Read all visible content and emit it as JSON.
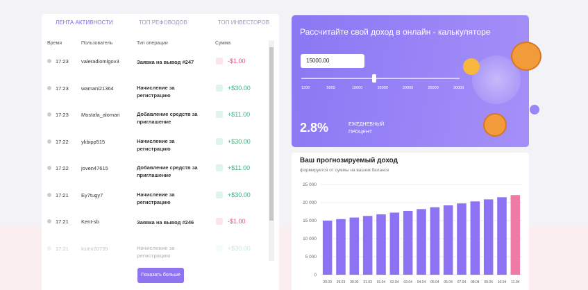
{
  "tabs": [
    "ЛЕНТА АКТИВНОСТИ",
    "ТОП РЕФОВОДОВ",
    "ТОП ИНВЕСТОРОВ"
  ],
  "table": {
    "columns": [
      "Время",
      "Пользователь",
      "Тип операции",
      "Сумма"
    ],
    "rows": [
      [
        "17:23",
        "valeradiomlgov3",
        "Заявка на вывод #247",
        "-$1.00"
      ],
      [
        "17:23",
        "wamani21364",
        "Начисление за регистрацию",
        "+$30.00"
      ],
      [
        "17:23",
        "Mostafa_alomari",
        "Добавление средств за приглашение",
        "+$11.00"
      ],
      [
        "17:22",
        "ykbipp515",
        "Начисление за регистрацию",
        "+$30.00"
      ],
      [
        "17:22",
        "joven47615",
        "Добавление средств за приглашение",
        "+$11.00"
      ],
      [
        "17:21",
        "Ey7tugy7",
        "Начисление за регистрацию",
        "+$30.00"
      ],
      [
        "17:21",
        "Kent-sb",
        "Заявка на вывод #246",
        "-$1.00"
      ],
      [
        "17:21",
        "ksmv20739",
        "Начисление за регистрацию",
        "+$30.00"
      ]
    ]
  },
  "button": "Показать больше",
  "calculator": {
    "title": "Рассчитайте свой доход в онлайн - калькуляторе",
    "input": "15000.00",
    "slider_labels": [
      "1200",
      "5000",
      "10000",
      "15000",
      "20000",
      "25000",
      "30000"
    ],
    "rate": "2.8%",
    "rate_label": "ЕЖЕДНЕВНЫЙ ПРОЦЕНТ"
  },
  "chart_data": {
    "type": "bar",
    "title": "Ваш прогнозируемый доход",
    "subtitle": "формируется от суммы на вашем балансе",
    "categories": [
      "29.03",
      "29.03",
      "30.03",
      "31.03",
      "01.04",
      "02.04",
      "03.04",
      "04.04",
      "05.04",
      "06.04",
      "07.04",
      "08.04",
      "09.04",
      "10.04",
      "11.04"
    ],
    "values": [
      15000,
      15420,
      15850,
      16300,
      16750,
      17220,
      17700,
      18200,
      18710,
      19230,
      19770,
      20330,
      20890,
      21480,
      22080
    ],
    "colors": [
      "#8d72f3",
      "#8d72f3",
      "#8d72f3",
      "#8d72f3",
      "#8d72f3",
      "#8d72f3",
      "#8d72f3",
      "#8d72f3",
      "#8d72f3",
      "#8d72f3",
      "#8d72f3",
      "#8d72f3",
      "#8d72f3",
      "#8d72f3",
      "#f07aa6"
    ],
    "ylim": [
      0,
      25000
    ],
    "yticks": [
      0,
      {
        "value": 5000,
        "label": "5 000"
      },
      {
        "value": 10000,
        "label": "10 000"
      },
      {
        "value": 15000,
        "label": "15 000"
      },
      {
        "value": 20000,
        "label": "20 000"
      },
      {
        "value": 25000,
        "label": "25 000"
      }
    ],
    "grid": true
  }
}
